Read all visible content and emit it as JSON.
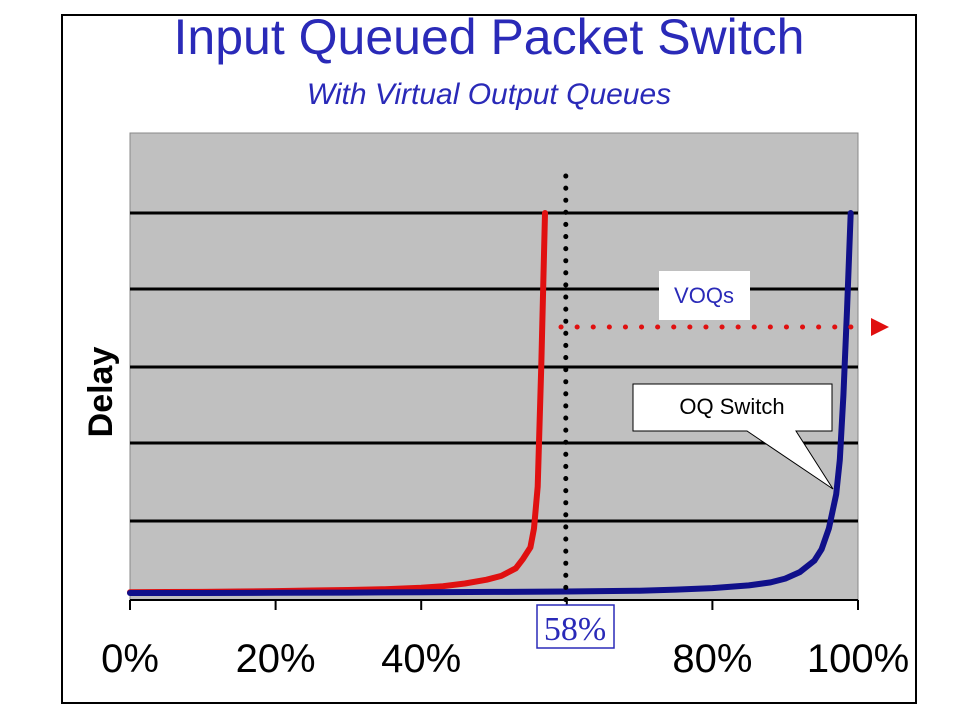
{
  "title": "Input Queued Packet Switch",
  "subtitle": "With Virtual Output Queues",
  "chart_data": {
    "type": "line",
    "title": "Input Queued Packet Switch",
    "subtitle": "With Virtual Output Queues",
    "xlabel": "",
    "ylabel": "Delay",
    "xlim": [
      0,
      100
    ],
    "xticks": [
      0,
      20,
      40,
      60,
      80,
      100
    ],
    "xtick_labels": [
      "0%",
      "20%",
      "40%",
      "",
      "80%",
      "100%"
    ],
    "grid": true,
    "series": [
      {
        "color": "#e01010",
        "x": [
          0,
          5,
          10,
          15,
          20,
          25,
          30,
          35,
          40,
          43,
          46,
          49,
          51,
          53,
          54,
          55,
          55.5,
          56,
          56.5,
          57
        ],
        "y": [
          0.2,
          0.25,
          0.3,
          0.4,
          0.5,
          0.65,
          0.8,
          1.0,
          1.4,
          1.8,
          2.5,
          3.5,
          4.5,
          6.5,
          9,
          12,
          17,
          28,
          60,
          100
        ]
      },
      {
        "color": "#10108a",
        "x": [
          0,
          10,
          20,
          30,
          40,
          50,
          60,
          70,
          75,
          80,
          85,
          88,
          90,
          92,
          94,
          95,
          96,
          97,
          97.5,
          98,
          98.5,
          99
        ],
        "y": [
          0,
          0,
          0.05,
          0.1,
          0.2,
          0.3,
          0.4,
          0.6,
          0.9,
          1.3,
          2.0,
          2.8,
          3.8,
          5.5,
          8.5,
          11.5,
          17,
          26,
          35,
          52,
          75,
          100
        ]
      }
    ],
    "annotations": [
      {
        "text": "58%",
        "x": 60
      },
      {
        "text": "VOQs"
      },
      {
        "text": "OQ Switch"
      }
    ]
  },
  "colors": {
    "title": "#2a2ab8",
    "plot_background": "#c0c0c0",
    "ideal_line": "#e01010",
    "oq_line": "#10108a",
    "arrow": "#e01010",
    "voqs_text": "#2a2ab8"
  }
}
